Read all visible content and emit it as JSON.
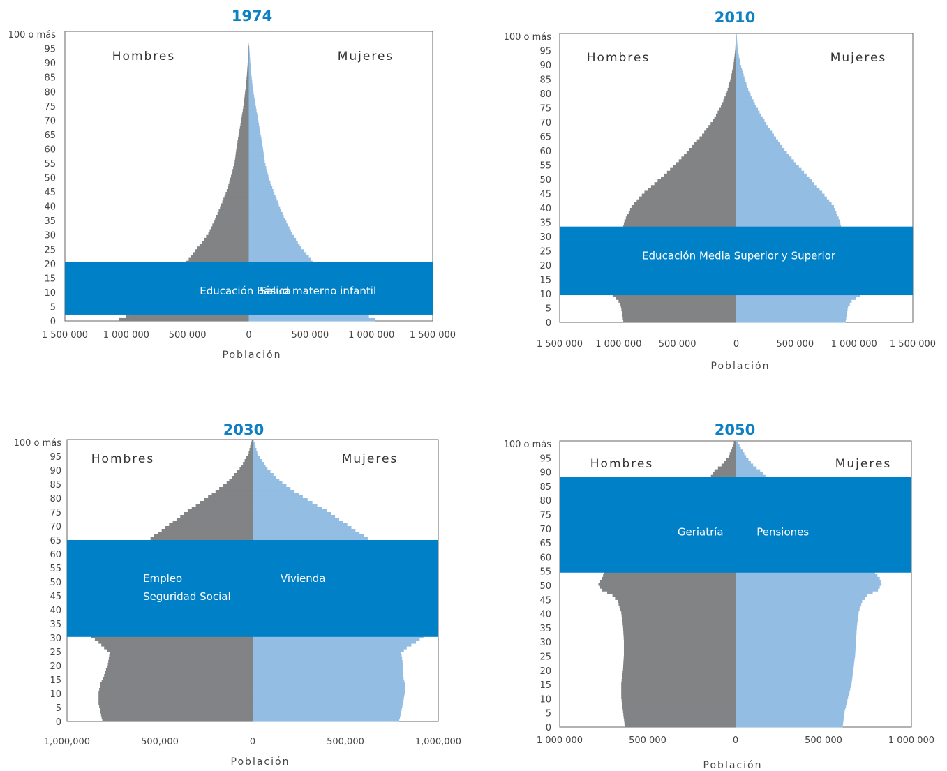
{
  "chart_data": [
    {
      "type": "bar",
      "title": "1974",
      "xlabel": "Población",
      "male_label": "Hombres",
      "female_label": "Mujeres",
      "colors": {
        "male": "#818385",
        "female": "#93bde3",
        "band": "#0080c6",
        "title": "#0e80c4"
      },
      "xlim": [
        -1500000,
        1500000
      ],
      "x_ticks": [
        -1500000,
        -1000000,
        -500000,
        0,
        500000,
        1000000,
        1500000
      ],
      "x_tick_labels": [
        "1 500 000",
        "1 000 000",
        "500 000",
        "0",
        "500 000",
        "1 000 000",
        "1 500 000"
      ],
      "y_tick_labels": [
        "0",
        "5",
        "10",
        "15",
        "20",
        "25",
        "30",
        "35",
        "40",
        "45",
        "50",
        "55",
        "60",
        "65",
        "70",
        "75",
        "80",
        "85",
        "90",
        "95",
        "100 o más"
      ],
      "male_anchors": [
        [
          0,
          1060000
        ],
        [
          1,
          1000000
        ],
        [
          3,
          900000
        ],
        [
          5,
          820000
        ],
        [
          10,
          720000
        ],
        [
          15,
          620000
        ],
        [
          20,
          510000
        ],
        [
          22,
          470000
        ],
        [
          25,
          420000
        ],
        [
          30,
          330000
        ],
        [
          35,
          275000
        ],
        [
          40,
          225000
        ],
        [
          45,
          180000
        ],
        [
          50,
          145000
        ],
        [
          55,
          115000
        ],
        [
          60,
          100000
        ],
        [
          65,
          80000
        ],
        [
          70,
          60000
        ],
        [
          75,
          42000
        ],
        [
          80,
          28000
        ],
        [
          85,
          16000
        ],
        [
          90,
          8000
        ],
        [
          95,
          3000
        ],
        [
          96,
          1000
        ]
      ],
      "female_anchors": [
        [
          0,
          1030000
        ],
        [
          1,
          980000
        ],
        [
          3,
          890000
        ],
        [
          5,
          820000
        ],
        [
          10,
          720000
        ],
        [
          15,
          630000
        ],
        [
          20,
          520000
        ],
        [
          22,
          490000
        ],
        [
          25,
          430000
        ],
        [
          30,
          355000
        ],
        [
          35,
          295000
        ],
        [
          40,
          245000
        ],
        [
          45,
          200000
        ],
        [
          50,
          160000
        ],
        [
          55,
          130000
        ],
        [
          60,
          115000
        ],
        [
          65,
          95000
        ],
        [
          70,
          75000
        ],
        [
          75,
          55000
        ],
        [
          80,
          35000
        ],
        [
          85,
          22000
        ],
        [
          90,
          12000
        ],
        [
          95,
          4000
        ],
        [
          96,
          1500
        ]
      ],
      "bands": [
        {
          "from_age": 2.2,
          "to_age": 20.5,
          "labels": [
            {
              "text": "Educación Básica",
              "x": -400000,
              "age": 10.5
            },
            {
              "text": "Salud materno infantil",
              "x": 90000,
              "age": 10.5
            }
          ]
        }
      ]
    },
    {
      "type": "bar",
      "title": "2010",
      "xlabel": "Población",
      "male_label": "Hombres",
      "female_label": "Mujeres",
      "colors": {
        "male": "#818385",
        "female": "#93bde3",
        "band": "#0080c6",
        "title": "#0e80c4"
      },
      "xlim": [
        -1500000,
        1500000
      ],
      "x_ticks": [
        -1500000,
        -1000000,
        -500000,
        0,
        500000,
        1000000,
        1500000
      ],
      "x_tick_labels": [
        "1 500 000",
        "1 000 000",
        "500 000",
        "0",
        "500 000",
        "1 000 000",
        "1 500 000"
      ],
      "y_tick_labels": [
        "0",
        "5",
        "10",
        "15",
        "20",
        "25",
        "30",
        "35",
        "40",
        "45",
        "50",
        "55",
        "60",
        "65",
        "70",
        "75",
        "80",
        "85",
        "90",
        "95",
        "100 o más"
      ],
      "male_anchors": [
        [
          0,
          960000
        ],
        [
          5,
          980000
        ],
        [
          7,
          1000000
        ],
        [
          9,
          1050000
        ],
        [
          10,
          1100000
        ],
        [
          12,
          1120000
        ],
        [
          15,
          1100000
        ],
        [
          20,
          1050000
        ],
        [
          25,
          1000000
        ],
        [
          30,
          970000
        ],
        [
          33,
          960000
        ],
        [
          35,
          950000
        ],
        [
          40,
          890000
        ],
        [
          45,
          780000
        ],
        [
          50,
          640000
        ],
        [
          55,
          510000
        ],
        [
          60,
          400000
        ],
        [
          65,
          290000
        ],
        [
          70,
          200000
        ],
        [
          75,
          130000
        ],
        [
          80,
          80000
        ],
        [
          85,
          45000
        ],
        [
          90,
          22000
        ],
        [
          95,
          8000
        ],
        [
          100,
          2000
        ]
      ],
      "female_anchors": [
        [
          0,
          930000
        ],
        [
          5,
          950000
        ],
        [
          7,
          980000
        ],
        [
          9,
          1050000
        ],
        [
          10,
          1100000
        ],
        [
          12,
          1110000
        ],
        [
          15,
          1080000
        ],
        [
          20,
          1050000
        ],
        [
          25,
          1010000
        ],
        [
          30,
          980000
        ],
        [
          33,
          890000
        ],
        [
          35,
          880000
        ],
        [
          40,
          830000
        ],
        [
          45,
          730000
        ],
        [
          50,
          620000
        ],
        [
          55,
          510000
        ],
        [
          60,
          410000
        ],
        [
          65,
          320000
        ],
        [
          70,
          240000
        ],
        [
          75,
          170000
        ],
        [
          80,
          110000
        ],
        [
          85,
          70000
        ],
        [
          90,
          35000
        ],
        [
          95,
          12000
        ],
        [
          100,
          4000
        ]
      ],
      "bands": [
        {
          "from_age": 9.5,
          "to_age": 33.5,
          "labels": [
            {
              "text": "Educación Media Superior y Superior",
              "x": -800000,
              "age": 23.3
            }
          ]
        }
      ]
    },
    {
      "type": "bar",
      "title": "2030",
      "xlabel": "Población",
      "male_label": "Hombres",
      "female_label": "Mujeres",
      "colors": {
        "male": "#818385",
        "female": "#93bde3",
        "band": "#0080c6",
        "title": "#0e80c4"
      },
      "xlim": [
        -1000000,
        1000000
      ],
      "x_ticks": [
        -1000000,
        -500000,
        0,
        500000,
        1000000
      ],
      "x_tick_labels": [
        "1,000,000",
        "500,000",
        "0",
        "500,000",
        "1,000,000"
      ],
      "y_tick_labels": [
        "0",
        "5",
        "10",
        "15",
        "20",
        "25",
        "30",
        "35",
        "40",
        "45",
        "50",
        "55",
        "60",
        "65",
        "70",
        "75",
        "80",
        "85",
        "90",
        "95",
        "100 o más"
      ],
      "male_anchors": [
        [
          0,
          810000
        ],
        [
          3,
          820000
        ],
        [
          6,
          830000
        ],
        [
          10,
          830000
        ],
        [
          13,
          820000
        ],
        [
          16,
          800000
        ],
        [
          20,
          780000
        ],
        [
          24,
          770000
        ],
        [
          26,
          800000
        ],
        [
          28,
          830000
        ],
        [
          30,
          870000
        ],
        [
          35,
          860000
        ],
        [
          40,
          830000
        ],
        [
          45,
          790000
        ],
        [
          50,
          740000
        ],
        [
          55,
          690000
        ],
        [
          60,
          640000
        ],
        [
          65,
          550000
        ],
        [
          70,
          450000
        ],
        [
          75,
          350000
        ],
        [
          80,
          240000
        ],
        [
          85,
          140000
        ],
        [
          90,
          70000
        ],
        [
          95,
          25000
        ],
        [
          100,
          5000
        ]
      ],
      "female_anchors": [
        [
          0,
          790000
        ],
        [
          3,
          800000
        ],
        [
          6,
          810000
        ],
        [
          10,
          820000
        ],
        [
          13,
          820000
        ],
        [
          16,
          810000
        ],
        [
          20,
          810000
        ],
        [
          24,
          800000
        ],
        [
          26,
          830000
        ],
        [
          28,
          880000
        ],
        [
          30,
          920000
        ],
        [
          35,
          910000
        ],
        [
          40,
          880000
        ],
        [
          45,
          840000
        ],
        [
          50,
          800000
        ],
        [
          55,
          760000
        ],
        [
          60,
          710000
        ],
        [
          65,
          620000
        ],
        [
          70,
          510000
        ],
        [
          75,
          400000
        ],
        [
          80,
          270000
        ],
        [
          85,
          160000
        ],
        [
          90,
          80000
        ],
        [
          95,
          30000
        ],
        [
          100,
          6000
        ]
      ],
      "bands": [
        {
          "from_age": 30.3,
          "to_age": 65.0,
          "labels": [
            {
              "text": "Empleo",
              "x": -590000,
              "age": 51.2
            },
            {
              "text": "Seguridad Social",
              "x": -590000,
              "age": 44.7
            },
            {
              "text": "Vivienda",
              "x": 150000,
              "age": 51.2
            }
          ]
        }
      ]
    },
    {
      "type": "bar",
      "title": "2050",
      "xlabel": "Población",
      "male_label": "Hombres",
      "female_label": "Mujeres",
      "colors": {
        "male": "#818385",
        "female": "#93bde3",
        "band": "#0080c6",
        "title": "#0e80c4"
      },
      "xlim": [
        -1000000,
        1000000
      ],
      "x_ticks": [
        -1000000,
        -500000,
        0,
        500000,
        1000000
      ],
      "x_tick_labels": [
        "1 000 000",
        "500 000",
        "0",
        "500 000",
        "1 000 000"
      ],
      "y_tick_labels": [
        "0",
        "5",
        "10",
        "15",
        "20",
        "25",
        "30",
        "35",
        "40",
        "45",
        "50",
        "55",
        "60",
        "65",
        "70",
        "75",
        "80",
        "85",
        "90",
        "95",
        "100 o más"
      ],
      "male_anchors": [
        [
          0,
          630000
        ],
        [
          5,
          640000
        ],
        [
          10,
          650000
        ],
        [
          15,
          650000
        ],
        [
          20,
          640000
        ],
        [
          25,
          635000
        ],
        [
          30,
          635000
        ],
        [
          35,
          640000
        ],
        [
          40,
          650000
        ],
        [
          44,
          670000
        ],
        [
          46,
          700000
        ],
        [
          48,
          760000
        ],
        [
          50,
          780000
        ],
        [
          52,
          760000
        ],
        [
          55,
          740000
        ],
        [
          60,
          700000
        ],
        [
          65,
          640000
        ],
        [
          70,
          560000
        ],
        [
          75,
          460000
        ],
        [
          80,
          360000
        ],
        [
          85,
          230000
        ],
        [
          88,
          140000
        ],
        [
          90,
          120000
        ],
        [
          92,
          80000
        ],
        [
          95,
          40000
        ],
        [
          98,
          20000
        ],
        [
          100,
          10000
        ]
      ],
      "female_anchors": [
        [
          0,
          610000
        ],
        [
          5,
          620000
        ],
        [
          10,
          640000
        ],
        [
          15,
          660000
        ],
        [
          20,
          670000
        ],
        [
          25,
          680000
        ],
        [
          30,
          685000
        ],
        [
          35,
          690000
        ],
        [
          40,
          700000
        ],
        [
          44,
          720000
        ],
        [
          46,
          750000
        ],
        [
          48,
          810000
        ],
        [
          50,
          830000
        ],
        [
          52,
          820000
        ],
        [
          55,
          780000
        ],
        [
          60,
          720000
        ],
        [
          65,
          660000
        ],
        [
          70,
          580000
        ],
        [
          75,
          470000
        ],
        [
          80,
          350000
        ],
        [
          85,
          230000
        ],
        [
          88,
          170000
        ],
        [
          90,
          140000
        ],
        [
          92,
          100000
        ],
        [
          95,
          60000
        ],
        [
          98,
          30000
        ],
        [
          100,
          15000
        ]
      ],
      "bands": [
        {
          "from_age": 54.5,
          "to_age": 88.2,
          "labels": [
            {
              "text": "Geriatría",
              "x": -330000,
              "age": 68.8
            },
            {
              "text": "Pensiones",
              "x": 120000,
              "age": 68.8
            }
          ]
        }
      ]
    }
  ]
}
